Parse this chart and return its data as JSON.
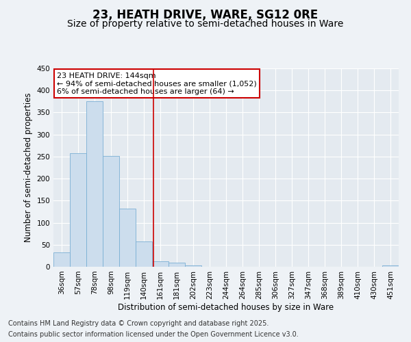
{
  "title": "23, HEATH DRIVE, WARE, SG12 0RE",
  "subtitle": "Size of property relative to semi-detached houses in Ware",
  "xlabel": "Distribution of semi-detached houses by size in Ware",
  "ylabel": "Number of semi-detached properties",
  "categories": [
    "36sqm",
    "57sqm",
    "78sqm",
    "98sqm",
    "119sqm",
    "140sqm",
    "161sqm",
    "181sqm",
    "202sqm",
    "223sqm",
    "244sqm",
    "264sqm",
    "285sqm",
    "306sqm",
    "327sqm",
    "347sqm",
    "368sqm",
    "389sqm",
    "410sqm",
    "430sqm",
    "451sqm"
  ],
  "values": [
    33,
    258,
    375,
    252,
    132,
    57,
    13,
    10,
    3,
    0,
    0,
    0,
    0,
    0,
    0,
    0,
    0,
    0,
    0,
    0,
    3
  ],
  "bar_color": "#ccdded",
  "bar_edge_color": "#7aafd4",
  "red_line_x": 5.6,
  "annotation_line1": "23 HEATH DRIVE: 144sqm",
  "annotation_line2": "← 94% of semi-detached houses are smaller (1,052)",
  "annotation_line3": "6% of semi-detached houses are larger (64) →",
  "annotation_box_color": "#ffffff",
  "annotation_box_edge_color": "#cc0000",
  "ylim": [
    0,
    450
  ],
  "yticks": [
    0,
    50,
    100,
    150,
    200,
    250,
    300,
    350,
    400,
    450
  ],
  "footer1": "Contains HM Land Registry data © Crown copyright and database right 2025.",
  "footer2": "Contains public sector information licensed under the Open Government Licence v3.0.",
  "bg_color": "#eef2f6",
  "plot_bg_color": "#e4eaf0",
  "grid_color": "#ffffff",
  "title_fontsize": 12,
  "subtitle_fontsize": 10,
  "label_fontsize": 8.5,
  "tick_fontsize": 7.5,
  "footer_fontsize": 7,
  "annotation_fontsize": 8
}
